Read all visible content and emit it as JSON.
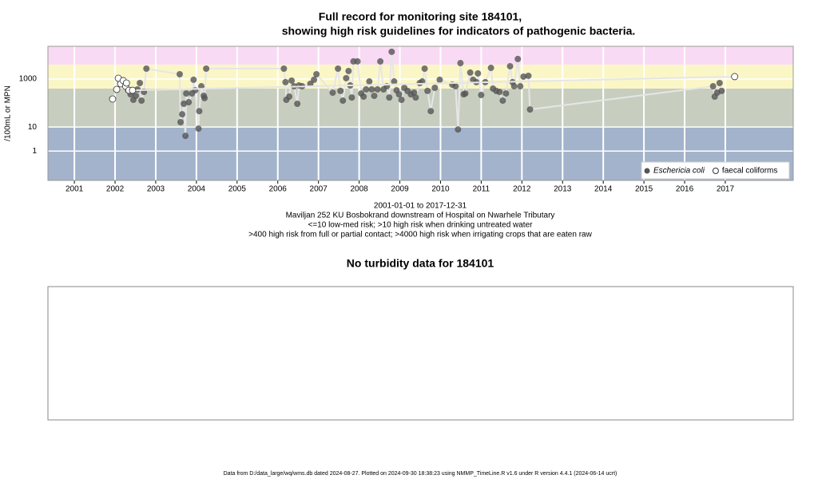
{
  "chart_data": {
    "type": "scatter",
    "title_lines": [
      "Full record for monitoring site 184101,",
      "showing high risk guidelines for indicators of pathogenic bacteria."
    ],
    "y_label": "/100mL or MPN",
    "caption_lines": [
      "2001-01-01 to 2017-12-31",
      "Maviljan 252 KU Bosbokrand downstream of Hospital on Nwarhele Tributary",
      "<=10 low-med risk; >10 high risk when drinking untreated water",
      ">400 high risk from full or partial contact; >4000 high risk when irrigating crops that are eaten raw"
    ],
    "log_y": true,
    "xlim": [
      2000.35,
      2018.67
    ],
    "xticks": [
      2001,
      2002,
      2003,
      2004,
      2005,
      2006,
      2007,
      2008,
      2009,
      2010,
      2011,
      2012,
      2013,
      2014,
      2015,
      2016,
      2017
    ],
    "ylim": [
      0.06,
      23000
    ],
    "yticks": [
      1,
      10,
      1000
    ],
    "grid": true,
    "thresholds": [
      10,
      400,
      4000
    ],
    "band_colors": [
      "#a3b3cb",
      "#c8cebf",
      "#fbf6c6",
      "#f9daf4"
    ],
    "legend": "lower right",
    "series": [
      {
        "name": "Eschericia coli",
        "color": "#555555",
        "filled": true,
        "x": [
          2002.32,
          2002.38,
          2002.45,
          2002.51,
          2002.55,
          2002.61,
          2002.65,
          2002.71,
          2002.77,
          2003.59,
          2003.61,
          2003.65,
          2003.69,
          2003.73,
          2003.75,
          2003.81,
          2003.89,
          2003.93,
          2003.97,
          2004.05,
          2004.07,
          2004.12,
          2004.18,
          2004.2,
          2004.24,
          2006.15,
          2006.19,
          2006.21,
          2006.28,
          2006.34,
          2006.4,
          2006.48,
          2006.52,
          2006.6,
          2006.8,
          2006.89,
          2006.95,
          2007.35,
          2007.48,
          2007.54,
          2007.6,
          2007.68,
          2007.74,
          2007.78,
          2007.82,
          2007.86,
          2007.96,
          2008.05,
          2008.11,
          2008.17,
          2008.25,
          2008.31,
          2008.37,
          2008.45,
          2008.52,
          2008.6,
          2008.68,
          2008.74,
          2008.8,
          2008.86,
          2008.92,
          2008.98,
          2009.04,
          2009.11,
          2009.19,
          2009.27,
          2009.35,
          2009.39,
          2009.49,
          2009.55,
          2009.61,
          2009.68,
          2009.76,
          2009.86,
          2009.98,
          2010.29,
          2010.37,
          2010.43,
          2010.49,
          2010.57,
          2010.61,
          2010.73,
          2010.8,
          2010.88,
          2010.92,
          2011.0,
          2011.1,
          2011.24,
          2011.29,
          2011.37,
          2011.45,
          2011.53,
          2011.61,
          2011.71,
          2011.77,
          2011.81,
          2011.9,
          2011.96,
          2012.04,
          2012.16,
          2012.2,
          2016.7,
          2016.74,
          2016.8,
          2016.86,
          2016.91
        ],
        "values": [
          340,
          230,
          136,
          200,
          370,
          680,
          126,
          290,
          2700,
          1580,
          16,
          34,
          93,
          4.3,
          250,
          108,
          250,
          930,
          340,
          8.6,
          46,
          500,
          200,
          160,
          2700,
          2700,
          740,
          136,
          185,
          860,
          500,
          93,
          540,
          500,
          630,
          930,
          1580,
          270,
          2700,
          320,
          126,
          1080,
          2150,
          540,
          170,
          5400,
          5400,
          250,
          185,
          370,
          790,
          370,
          200,
          370,
          5400,
          370,
          500,
          170,
          13600,
          790,
          340,
          230,
          136,
          430,
          320,
          230,
          270,
          170,
          680,
          790,
          2700,
          320,
          46,
          430,
          930,
          580,
          500,
          7.9,
          4600,
          230,
          250,
          1850,
          930,
          740,
          1710,
          215,
          740,
          2900,
          400,
          320,
          290,
          126,
          250,
          3400,
          740,
          500,
          6800,
          500,
          1260,
          1360,
          54,
          500,
          185,
          270,
          680,
          320
        ]
      },
      {
        "name": "faecal coliforms",
        "color": "#333333",
        "filled": false,
        "x": [
          2001.94,
          2002.04,
          2002.08,
          2002.14,
          2002.2,
          2002.26,
          2002.28,
          2002.34,
          2002.43,
          2017.23
        ],
        "values": [
          147,
          370,
          1080,
          630,
          860,
          500,
          680,
          340,
          340,
          1260
        ]
      }
    ]
  },
  "turbidity": {
    "title": "No turbidity data for 184101"
  },
  "footer": "Data from D:/data_large/wq/wms.db dated 2024-08-27. Plotted on 2024-09-30 18:38:23 using NMMP_TimeLine.R v1.6 under R version 4.4.1 (2024-06-14 ucrt)"
}
